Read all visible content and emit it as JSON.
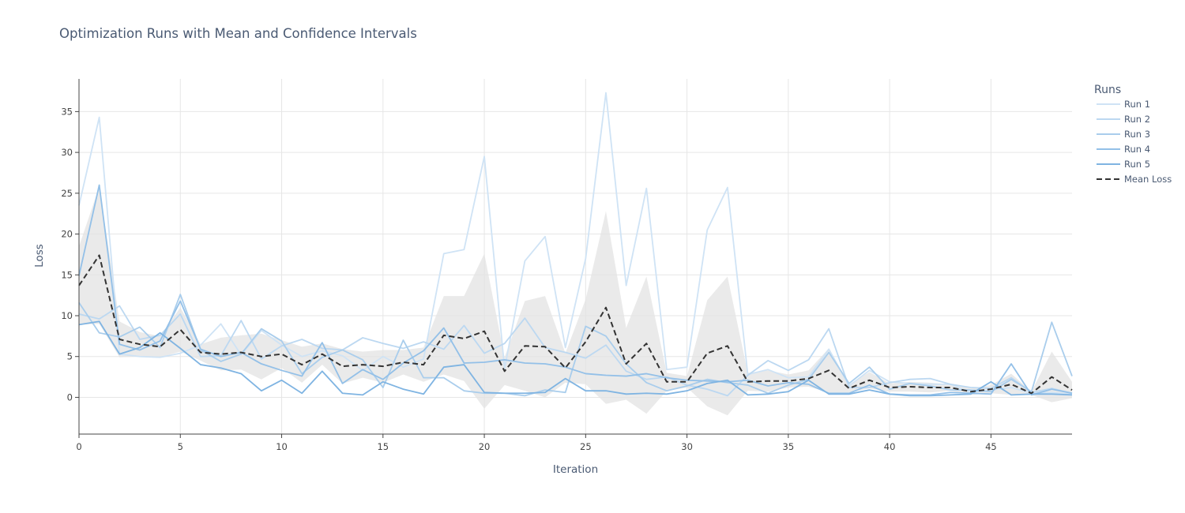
{
  "chart_data": {
    "type": "line",
    "title": "Optimization Runs with Mean and Confidence Intervals",
    "xlabel": "Iteration",
    "ylabel": "Loss",
    "xlim": [
      0,
      49
    ],
    "ylim": [
      -4.5,
      39
    ],
    "x_ticks": [
      0,
      5,
      10,
      15,
      20,
      25,
      30,
      35,
      40,
      45
    ],
    "y_ticks": [
      0,
      5,
      10,
      15,
      20,
      25,
      30,
      35
    ],
    "grid": true,
    "legend": {
      "title": "Runs",
      "position": "right"
    },
    "x": [
      0,
      1,
      2,
      3,
      4,
      5,
      6,
      7,
      8,
      9,
      10,
      11,
      12,
      13,
      14,
      15,
      16,
      17,
      18,
      19,
      20,
      21,
      22,
      23,
      24,
      25,
      26,
      27,
      28,
      29,
      30,
      31,
      32,
      33,
      34,
      35,
      36,
      37,
      38,
      39,
      40,
      41,
      42,
      43,
      44,
      45,
      46,
      47,
      48,
      49
    ],
    "series": [
      {
        "name": "Run 1",
        "color": "#cfe3f5",
        "values": [
          23.5,
          34.3,
          5.3,
          5.0,
          4.9,
          5.4,
          6.4,
          9.0,
          5.2,
          8.2,
          6.4,
          5.0,
          5.7,
          5.1,
          3.3,
          5.0,
          3.7,
          4.7,
          17.6,
          18.1,
          29.5,
          3.5,
          16.7,
          19.7,
          6.1,
          17.0,
          37.3,
          13.7,
          25.6,
          3.4,
          3.7,
          20.5,
          25.7,
          2.8,
          3.4,
          2.4,
          2.5,
          5.9,
          1.4,
          3.3,
          1.9,
          1.7,
          1.6,
          1.6,
          0.6,
          0.9,
          1.2,
          0.5,
          0.6,
          0.4
        ]
      },
      {
        "name": "Run 2",
        "color": "#bcd8f1",
        "values": [
          10.2,
          9.6,
          11.2,
          7.1,
          7.6,
          10.2,
          5.0,
          5.1,
          9.4,
          4.7,
          6.3,
          7.1,
          6.0,
          5.8,
          7.3,
          6.6,
          6.0,
          6.8,
          5.9,
          8.8,
          5.4,
          6.6,
          9.7,
          6.1,
          5.5,
          4.8,
          6.4,
          3.2,
          2.2,
          2.5,
          1.5,
          1.0,
          0.2,
          2.7,
          4.5,
          3.3,
          4.6,
          8.4,
          1.2,
          1.2,
          1.8,
          2.2,
          2.3,
          1.6,
          1.2,
          1.1,
          2.4,
          0.6,
          1.1,
          0.5
        ]
      },
      {
        "name": "Run 3",
        "color": "#a9cdec",
        "values": [
          11.6,
          7.9,
          7.4,
          8.6,
          6.1,
          12.6,
          5.8,
          4.4,
          5.3,
          8.4,
          6.9,
          2.9,
          4.9,
          5.8,
          4.6,
          1.2,
          7.0,
          2.4,
          2.4,
          0.8,
          0.5,
          0.5,
          0.2,
          0.9,
          0.6,
          8.7,
          7.5,
          4.1,
          1.8,
          0.8,
          1.4,
          2.2,
          1.8,
          1.5,
          0.5,
          1.5,
          2.2,
          5.5,
          1.7,
          3.7,
          1.0,
          1.7,
          1.4,
          0.9,
          0.9,
          0.7,
          2.2,
          0.7,
          9.2,
          2.6
        ]
      },
      {
        "name": "Run 4",
        "color": "#93c0e8",
        "values": [
          14.9,
          26.0,
          6.5,
          5.8,
          6.9,
          11.8,
          5.9,
          5.0,
          5.5,
          4.1,
          3.3,
          2.6,
          6.7,
          1.7,
          3.4,
          2.2,
          4.2,
          5.7,
          8.5,
          4.2,
          4.3,
          4.6,
          4.2,
          4.1,
          3.7,
          2.9,
          2.7,
          2.6,
          2.9,
          2.4,
          2.1,
          2.0,
          1.9,
          2.1,
          1.4,
          1.8,
          1.6,
          0.5,
          0.5,
          1.5,
          0.4,
          0.3,
          0.3,
          0.6,
          0.5,
          0.4,
          4.1,
          0.3,
          1.0,
          0.5
        ]
      },
      {
        "name": "Run 5",
        "color": "#7fb4e2",
        "values": [
          8.9,
          9.3,
          5.3,
          6.1,
          7.9,
          6.0,
          4.0,
          3.6,
          2.9,
          0.8,
          2.1,
          0.5,
          3.2,
          0.5,
          0.3,
          1.9,
          1.0,
          0.4,
          3.7,
          4.0,
          0.6,
          0.5,
          0.5,
          0.6,
          2.3,
          0.8,
          0.8,
          0.4,
          0.5,
          0.4,
          0.8,
          1.7,
          2.1,
          0.3,
          0.4,
          0.7,
          2.1,
          0.4,
          0.4,
          0.9,
          0.4,
          0.2,
          0.2,
          0.3,
          0.4,
          1.9,
          0.3,
          0.4,
          0.4,
          0.3
        ]
      },
      {
        "name": "Mean Loss",
        "color": "#333333",
        "dash": "dashed",
        "values": [
          13.7,
          17.4,
          7.1,
          6.5,
          6.2,
          8.3,
          5.5,
          5.3,
          5.5,
          5.0,
          5.3,
          4.0,
          5.3,
          3.8,
          4.0,
          3.8,
          4.3,
          4.0,
          7.6,
          7.2,
          8.1,
          3.2,
          6.3,
          6.2,
          3.6,
          6.8,
          11.0,
          4.1,
          6.6,
          1.9,
          1.9,
          5.4,
          6.3,
          1.9,
          2.0,
          2.0,
          2.3,
          3.3,
          1.1,
          2.1,
          1.2,
          1.3,
          1.2,
          1.2,
          0.7,
          1.0,
          1.6,
          0.5,
          2.5,
          0.9
        ]
      }
    ],
    "confidence_band": {
      "color": "#e3e3e3",
      "upper": [
        18.5,
        25.8,
        9.3,
        8.0,
        7.5,
        11.0,
        6.5,
        7.3,
        7.6,
        7.8,
        7.0,
        6.2,
        6.6,
        5.9,
        5.6,
        5.8,
        5.8,
        6.1,
        12.4,
        12.4,
        17.6,
        4.9,
        11.8,
        12.4,
        5.4,
        12.0,
        22.8,
        8.5,
        14.8,
        3.0,
        2.6,
        11.9,
        14.8,
        3.0,
        3.3,
        2.8,
        3.3,
        6.0,
        1.6,
        3.1,
        1.7,
        1.9,
        1.8,
        1.6,
        1.1,
        1.5,
        2.9,
        0.7,
        5.6,
        1.9
      ],
      "lower": [
        8.9,
        9.0,
        4.9,
        5.0,
        4.9,
        5.6,
        4.5,
        3.3,
        3.4,
        2.2,
        3.6,
        1.8,
        4.0,
        1.7,
        2.4,
        1.8,
        2.8,
        1.9,
        2.8,
        2.0,
        -1.4,
        1.5,
        0.8,
        0.0,
        1.8,
        1.6,
        -0.8,
        -0.3,
        -2.0,
        0.8,
        1.2,
        -1.1,
        -2.2,
        0.8,
        0.7,
        1.2,
        1.3,
        0.6,
        0.6,
        1.1,
        0.7,
        0.7,
        0.6,
        0.8,
        0.3,
        0.5,
        0.3,
        0.3,
        -0.6,
        -0.1
      ]
    }
  }
}
